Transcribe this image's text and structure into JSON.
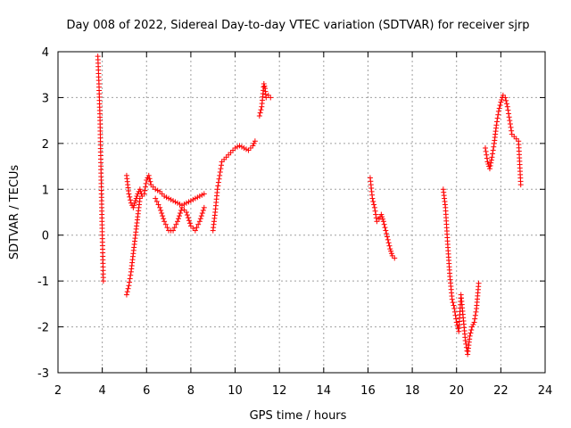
{
  "chart_data": {
    "type": "scatter",
    "title": "Day 008 of 2022, Sidereal Day-to-day VTEC variation (SDTVAR) for receiver sjrp",
    "xlabel": "GPS time / hours",
    "ylabel": "SDTVAR / TECUs",
    "xlim": [
      2,
      24
    ],
    "ylim": [
      -3,
      4
    ],
    "xticks": [
      2,
      4,
      6,
      8,
      10,
      12,
      14,
      16,
      18,
      20,
      22,
      24
    ],
    "yticks": [
      -3,
      -2,
      -1,
      0,
      1,
      2,
      3,
      4
    ],
    "grid": true,
    "marker": "+",
    "color": "#ff0000",
    "series": [
      {
        "name": "sjrp",
        "segments": [
          {
            "x": [
              3.8,
              3.85,
              3.9,
              3.95,
              4.0,
              4.05
            ],
            "y": [
              3.9,
              3.3,
              2.5,
              1.2,
              0.0,
              -1.0
            ]
          },
          {
            "x": [
              5.1,
              5.2,
              5.3,
              5.4,
              5.5,
              5.6,
              5.7,
              5.8,
              5.9,
              6.0,
              6.1,
              6.2,
              6.4,
              6.6,
              6.8,
              7.0,
              7.2,
              7.4,
              7.6,
              7.8,
              8.0,
              8.2,
              8.4,
              8.6
            ],
            "y": [
              1.3,
              0.9,
              0.7,
              0.6,
              0.75,
              0.9,
              1.0,
              0.85,
              0.9,
              1.2,
              1.3,
              1.1,
              1.0,
              0.95,
              0.85,
              0.8,
              0.75,
              0.7,
              0.65,
              0.7,
              0.75,
              0.8,
              0.85,
              0.9
            ]
          },
          {
            "x": [
              5.1,
              5.2,
              5.3,
              5.4,
              5.5,
              5.6,
              5.7
            ],
            "y": [
              -1.3,
              -1.1,
              -0.8,
              -0.4,
              0.0,
              0.4,
              0.8
            ]
          },
          {
            "x": [
              6.4,
              6.6,
              6.8,
              7.0,
              7.2,
              7.4,
              7.6,
              7.8,
              8.0,
              8.2,
              8.4,
              8.6
            ],
            "y": [
              0.8,
              0.6,
              0.3,
              0.1,
              0.1,
              0.3,
              0.6,
              0.5,
              0.2,
              0.1,
              0.3,
              0.6
            ]
          },
          {
            "x": [
              9.0,
              9.1,
              9.2,
              9.3,
              9.4,
              9.5,
              9.6,
              9.8,
              10.0,
              10.2,
              10.4,
              10.6,
              10.8,
              10.9
            ],
            "y": [
              0.1,
              0.5,
              1.0,
              1.3,
              1.6,
              1.65,
              1.7,
              1.8,
              1.9,
              1.95,
              1.9,
              1.85,
              1.95,
              2.05
            ]
          },
          {
            "x": [
              11.1,
              11.2,
              11.3,
              11.35,
              11.4,
              11.5,
              11.6
            ],
            "y": [
              2.6,
              2.8,
              3.3,
              3.2,
              3.0,
              3.05,
              3.0
            ]
          },
          {
            "x": [
              16.1,
              16.2,
              16.3,
              16.4,
              16.5,
              16.6,
              16.7,
              16.8,
              16.9,
              17.0,
              17.1,
              17.2
            ],
            "y": [
              1.25,
              0.8,
              0.6,
              0.3,
              0.35,
              0.45,
              0.3,
              0.1,
              -0.1,
              -0.3,
              -0.45,
              -0.5
            ]
          },
          {
            "x": [
              19.4,
              19.5,
              19.6,
              19.7,
              19.8,
              19.9,
              20.0,
              20.1,
              20.2,
              20.3,
              20.4,
              20.5,
              20.6,
              20.7,
              20.8,
              20.9,
              21.0
            ],
            "y": [
              1.0,
              0.6,
              -0.2,
              -0.9,
              -1.4,
              -1.6,
              -1.9,
              -2.1,
              -1.3,
              -1.8,
              -2.3,
              -2.6,
              -2.2,
              -2.0,
              -1.9,
              -1.6,
              -1.05
            ]
          },
          {
            "x": [
              21.3,
              21.4,
              21.5,
              21.6,
              21.7,
              21.8,
              21.9,
              22.0,
              22.1,
              22.2,
              22.3,
              22.4,
              22.5,
              22.6,
              22.7,
              22.8,
              22.9
            ],
            "y": [
              1.9,
              1.6,
              1.45,
              1.7,
              2.0,
              2.4,
              2.7,
              2.9,
              3.05,
              3.0,
              2.8,
              2.5,
              2.2,
              2.15,
              2.1,
              2.05,
              1.1
            ]
          }
        ]
      }
    ]
  }
}
